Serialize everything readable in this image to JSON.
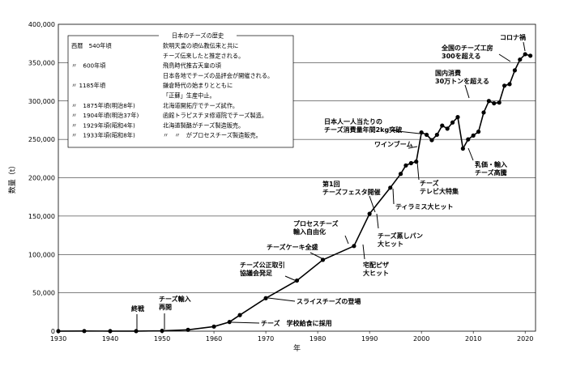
{
  "chart_data": {
    "type": "line",
    "title": "",
    "xlabel": "年",
    "ylabel": "数量（t）",
    "xlim": [
      1930,
      2022
    ],
    "ylim": [
      0,
      400000
    ],
    "x_ticks": [
      "1930",
      "1940",
      "1950",
      "1960",
      "1970",
      "1980",
      "1990",
      "2000",
      "2010",
      "2020"
    ],
    "y_ticks": [
      "0",
      "50,000",
      "100,000",
      "150,000",
      "200,000",
      "250,000",
      "300,000",
      "350,000",
      "400,000"
    ],
    "grid": "horizontal",
    "series": [
      {
        "x": [
          1930,
          1935,
          1940,
          1945,
          1950,
          1955,
          1960,
          1963,
          1965,
          1970,
          1976,
          1981,
          1987,
          1990,
          1994,
          1996,
          1997,
          1998,
          1999,
          2000,
          2001,
          2002,
          2003,
          2004,
          2005,
          2006,
          2007,
          2008,
          2009,
          2010,
          2011,
          2012,
          2013,
          2014,
          2015,
          2016,
          2017,
          2018,
          2019,
          2020,
          2021
        ],
        "y": [
          100,
          200,
          100,
          100,
          500,
          1800,
          6000,
          12000,
          21000,
          43000,
          66000,
          93000,
          111000,
          153000,
          187000,
          205000,
          216000,
          219000,
          221000,
          259000,
          256000,
          249000,
          256000,
          268000,
          264000,
          272000,
          279000,
          238000,
          250000,
          255000,
          260000,
          285000,
          300000,
          297000,
          298000,
          320000,
          322000,
          340000,
          354000,
          361000,
          359000
        ]
      }
    ],
    "annotations": [
      {
        "lines": [
          "終戦"
        ],
        "x": 1945
      },
      {
        "lines": [
          "チーズ輸入",
          "再開"
        ],
        "x": 1950
      },
      {
        "lines": [
          "チーズ　学校給食に採用"
        ],
        "x": 1963
      },
      {
        "lines": [
          "スライスチーズの登場"
        ],
        "x": 1970
      },
      {
        "lines": [
          "チーズ公正取引",
          "協議会発足"
        ],
        "x": 1976
      },
      {
        "lines": [
          "チーズケーキ全盛"
        ],
        "x": 1981
      },
      {
        "lines": [
          "プロセスチーズ",
          "輸入自由化"
        ],
        "x": 1987
      },
      {
        "lines": [
          "宅配ピザ",
          "大ヒット"
        ],
        "x": 1987
      },
      {
        "lines": [
          "第1回",
          "チーズフェスタ開催"
        ],
        "x": 1990
      },
      {
        "lines": [
          "チーズ蒸しパン",
          "大ヒット"
        ],
        "x": 1990
      },
      {
        "lines": [
          "ティラミス大ヒット"
        ],
        "x": 1994
      },
      {
        "lines": [
          "チーズ",
          "テレビ大特集"
        ],
        "x": 1999
      },
      {
        "lines": [
          "ワインブーム"
        ],
        "x": 1998
      },
      {
        "lines": [
          "日本人一人当たりの",
          "チーズ消費量年間2kg突破"
        ],
        "x": 2000
      },
      {
        "lines": [
          "乳価・輸入",
          "チーズ高騰"
        ],
        "x": 2008
      },
      {
        "lines": [
          "国内消費",
          "30万トンを超える"
        ],
        "x": 2013
      },
      {
        "lines": [
          "全国のチーズ工房",
          "300を超える"
        ],
        "x": 2018
      },
      {
        "lines": [
          "コロナ禍"
        ],
        "x": 2020
      }
    ],
    "history_box": {
      "title": "日本のチーズの歴史",
      "rows": [
        {
          "date": "西暦　540年頃",
          "text": "欽明天皇の頃仏教伝来と共に"
        },
        {
          "date": "",
          "text": "チーズ伝来したと推定される。"
        },
        {
          "date": "〃　600年頃",
          "text": "飛鳥時代推古天皇の頃"
        },
        {
          "date": "",
          "text": "日本各地でチーズの品評会が開催される。"
        },
        {
          "date": "〃 1185年頃",
          "text": "鎌倉時代の始まりとともに"
        },
        {
          "date": "",
          "text": "「正蘇」生産中止。"
        },
        {
          "date": "〃　1875年頃(明治8年)",
          "text": "北海道開拓庁でチーズ試作。"
        },
        {
          "date": "〃　1904年頃(明治37年)",
          "text": "函館トラピスチヌ修道院でチーズ製造。"
        },
        {
          "date": "〃　1929年頃(昭和4年)",
          "text": "北海道製酪がチーズ製造販売。"
        },
        {
          "date": "〃　1933年頃(昭和8年)",
          "text": "〃　〃　がプロセスチーズ製造販売。"
        }
      ]
    }
  }
}
